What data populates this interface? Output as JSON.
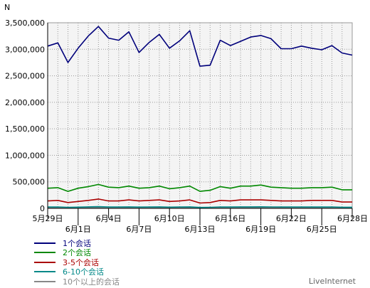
{
  "chart_data": {
    "type": "line",
    "title": "",
    "xlabel": "",
    "ylabel": "N",
    "ylim": [
      0,
      3500000
    ],
    "yticks": [
      "0",
      "500,000",
      "1,000,000",
      "1,500,000",
      "2,000,000",
      "2,500,000",
      "3,000,000",
      "3,500,000"
    ],
    "x_first": "5月29日",
    "x_last": "6月28日",
    "x_ticks_upper": [
      "5月29日",
      "6月4日",
      "6月10日",
      "6月16日",
      "6月22日",
      "6月28日"
    ],
    "x_ticks_lower": [
      "6月1日",
      "6月7日",
      "6月13日",
      "6月19日",
      "6月25日"
    ],
    "grid": true,
    "legend_position": "bottom-left",
    "series": [
      {
        "name": "1个会话",
        "color": "#00007b",
        "values": [
          3060000,
          3120000,
          2750000,
          3020000,
          3250000,
          3430000,
          3210000,
          3170000,
          3330000,
          2940000,
          3130000,
          3280000,
          3020000,
          3160000,
          3350000,
          2680000,
          2700000,
          3170000,
          3070000,
          3150000,
          3230000,
          3260000,
          3200000,
          3010000,
          3010000,
          3060000,
          3020000,
          2990000,
          3070000,
          2930000,
          2890000
        ]
      },
      {
        "name": "2个会话",
        "color": "#008800",
        "values": [
          380000,
          390000,
          320000,
          380000,
          410000,
          450000,
          400000,
          390000,
          420000,
          380000,
          390000,
          420000,
          370000,
          390000,
          420000,
          320000,
          340000,
          410000,
          380000,
          420000,
          420000,
          440000,
          400000,
          390000,
          380000,
          380000,
          390000,
          390000,
          400000,
          350000,
          350000
        ]
      },
      {
        "name": "3-5个会话",
        "color": "#aa0000",
        "values": [
          140000,
          150000,
          110000,
          130000,
          150000,
          175000,
          140000,
          140000,
          160000,
          140000,
          150000,
          160000,
          130000,
          140000,
          160000,
          100000,
          110000,
          150000,
          140000,
          160000,
          160000,
          160000,
          150000,
          140000,
          140000,
          140000,
          150000,
          150000,
          150000,
          120000,
          120000
        ]
      },
      {
        "name": "6-10个会话",
        "color": "#008888",
        "values": [
          25000,
          27000,
          20000,
          23000,
          28000,
          32000,
          26000,
          25000,
          28000,
          24000,
          26000,
          28000,
          23000,
          25000,
          28000,
          18000,
          20000,
          27000,
          25000,
          28000,
          28000,
          29000,
          27000,
          25000,
          25000,
          25000,
          26000,
          26000,
          27000,
          22000,
          22000
        ]
      },
      {
        "name": "10个以上的会话",
        "color": "#888888",
        "values": [
          8000,
          9000,
          6000,
          7000,
          9000,
          10000,
          8000,
          8000,
          9000,
          7000,
          8000,
          9000,
          7000,
          8000,
          9000,
          5000,
          6000,
          8000,
          8000,
          9000,
          9000,
          9000,
          8000,
          8000,
          8000,
          8000,
          8000,
          8000,
          8000,
          7000,
          7000
        ]
      }
    ]
  },
  "brand": "LiveInternet"
}
